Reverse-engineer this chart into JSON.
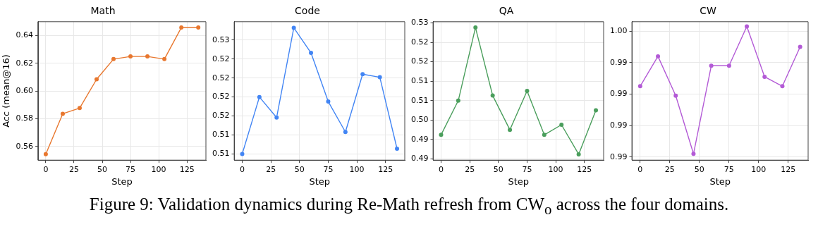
{
  "chart_data": [
    {
      "type": "line",
      "title": "Math",
      "xlabel": "Step",
      "ylabel": "Acc (mean@16)",
      "x": [
        0,
        15,
        30,
        45,
        60,
        75,
        90,
        105,
        120,
        135
      ],
      "series": [
        {
          "color": "#e8772e",
          "values": [
            0.5544,
            0.5836,
            0.5877,
            0.6085,
            0.6231,
            0.625,
            0.625,
            0.6231,
            0.6459,
            0.6459
          ]
        }
      ],
      "xlim": [
        -6.75,
        141.75
      ],
      "xticks": [
        0,
        25,
        50,
        75,
        100,
        125
      ],
      "ylim": [
        0.5501,
        0.6501
      ],
      "yticks": [
        0.56,
        0.58,
        {
          "value": 0.6,
          "label": "0.60"
        },
        0.62,
        0.64
      ],
      "grid": true,
      "marker": "circle",
      "line_style": "solid",
      "annotations": [
        "Figure 9: Validation dynamics during Re-Math refresh from CW$_{o}$ across the four domains."
      ]
    },
    {
      "type": "line",
      "title": "Code",
      "xlabel": "Step",
      "x": [
        0,
        15,
        30,
        45,
        60,
        75,
        90,
        105,
        120,
        135
      ],
      "series": [
        {
          "color": "#4285f4",
          "values": [
            0.51,
            0.5175,
            0.5148,
            0.5266,
            0.5233,
            0.5169,
            0.5129,
            0.5205,
            0.5201,
            0.5107
          ]
        }
      ],
      "xlim": [
        -6.75,
        141.75
      ],
      "xticks": [
        0,
        25,
        50,
        75,
        100,
        125
      ],
      "ylim": [
        0.5092,
        0.5274
      ],
      "yticks": [
        {
          "value": 0.51,
          "label": "0.51"
        },
        {
          "value": 0.5125,
          "label": "0.51"
        },
        {
          "value": 0.515,
          "label": "0.52"
        },
        {
          "value": 0.5175,
          "label": "0.52"
        },
        {
          "value": 0.52,
          "label": "0.52"
        },
        {
          "value": 0.5225,
          "label": "0.52"
        },
        {
          "value": 0.525,
          "label": "0.53"
        }
      ],
      "grid": true,
      "marker": "circle",
      "line_style": "solid"
    },
    {
      "type": "line",
      "title": "QA",
      "xlabel": "Step",
      "x": [
        0,
        15,
        30,
        45,
        60,
        75,
        90,
        105,
        120,
        135
      ],
      "series": [
        {
          "color": "#4a9e5c",
          "values": [
            0.4962,
            0.505,
            0.5238,
            0.5063,
            0.4975,
            0.5075,
            0.4962,
            0.4988,
            0.4912,
            0.5025
          ]
        }
      ],
      "xlim": [
        -6.75,
        141.75
      ],
      "xticks": [
        0,
        25,
        50,
        75,
        100,
        125
      ],
      "ylim": [
        0.4897,
        0.5253
      ],
      "yticks": [
        {
          "value": 0.49,
          "label": "0.49"
        },
        {
          "value": 0.495,
          "label": "0.49"
        },
        {
          "value": 0.5,
          "label": "0.50"
        },
        {
          "value": 0.505,
          "label": "0.51"
        },
        {
          "value": 0.51,
          "label": "0.51"
        },
        {
          "value": 0.515,
          "label": "0.52"
        },
        {
          "value": 0.52,
          "label": "0.52"
        },
        {
          "value": 0.525,
          "label": "0.53"
        }
      ],
      "grid": true,
      "marker": "circle",
      "line_style": "solid"
    },
    {
      "type": "line",
      "title": "CW",
      "xlabel": "Step",
      "x": [
        0,
        15,
        30,
        45,
        60,
        75,
        90,
        105,
        120,
        135
      ],
      "series": [
        {
          "color": "#b35ad6",
          "values": [
            0.9925,
            0.9944,
            0.9919,
            0.9882,
            0.9938,
            0.9938,
            0.9963,
            0.9931,
            0.9925,
            0.995
          ]
        }
      ],
      "xlim": [
        -6.75,
        141.75
      ],
      "xticks": [
        0,
        25,
        50,
        75,
        100,
        125
      ],
      "ylim": [
        0.9878,
        0.9966
      ],
      "yticks": [
        {
          "value": 0.988,
          "label": "0.99"
        },
        {
          "value": 0.99,
          "label": "0.99"
        },
        {
          "value": 0.992,
          "label": "0.99"
        },
        {
          "value": 0.994,
          "label": "0.99"
        },
        {
          "value": 0.996,
          "label": "1.00"
        }
      ],
      "grid": true,
      "marker": "circle",
      "line_style": "solid"
    }
  ]
}
